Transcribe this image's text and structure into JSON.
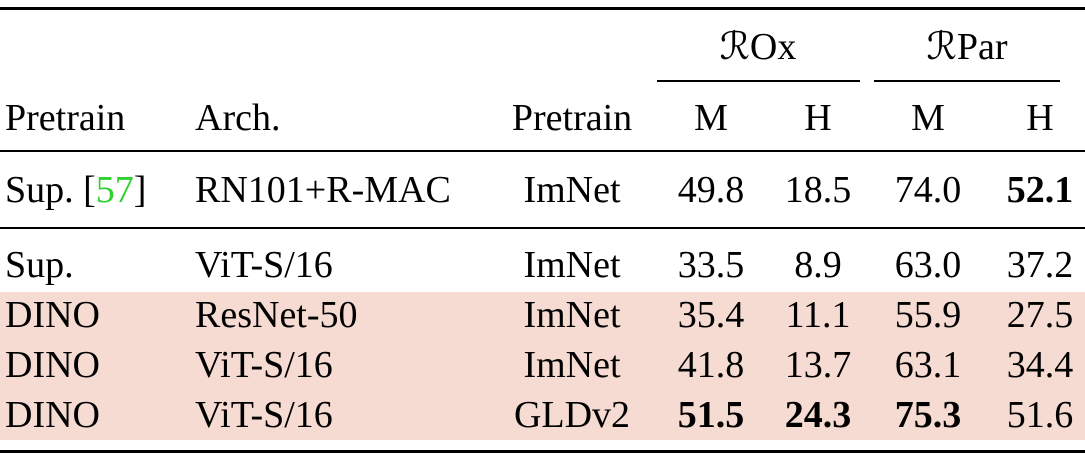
{
  "header": {
    "groups": [
      "ℛOx",
      "ℛPar"
    ],
    "columns": [
      "Pretrain",
      "Arch.",
      "Pretrain",
      "M",
      "H",
      "M",
      "H"
    ]
  },
  "rows": [
    [
      {
        "pre": "Sup. [",
        "cite": "57",
        "post": "]"
      },
      "RN101+R-MAC",
      "ImNet",
      "49.8",
      "18.5",
      "74.0",
      "52.1"
    ],
    [
      "Sup.",
      "ViT-S/16",
      "ImNet",
      "33.5",
      "8.9",
      "63.0",
      "37.2"
    ],
    [
      "DINO",
      "ResNet-50",
      "ImNet",
      "35.4",
      "11.1",
      "55.9",
      "27.5"
    ],
    [
      "DINO",
      "ViT-S/16",
      "ImNet",
      "41.8",
      "13.7",
      "63.1",
      "34.4"
    ],
    [
      "DINO",
      "ViT-S/16",
      "GLDv2",
      "51.5",
      "24.3",
      "75.3",
      "51.6"
    ]
  ],
  "bold": [
    [
      0,
      6
    ],
    [
      4,
      3
    ],
    [
      4,
      4
    ],
    [
      4,
      5
    ]
  ],
  "highlight_rows": [
    2,
    3,
    4
  ],
  "highlight_color": "#f6dbd2",
  "cite_color": "#2fd12f"
}
